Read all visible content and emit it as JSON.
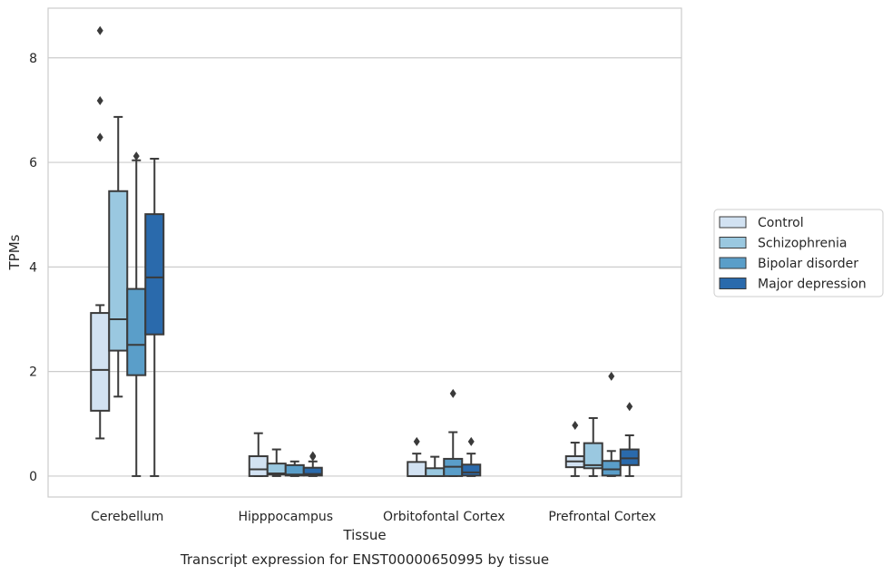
{
  "caption": "Transcript expression for ENST00000650995 by tissue",
  "chart_data": {
    "type": "box",
    "xlabel": "Tissue",
    "ylabel": "TPMs",
    "ylim": [
      -0.4,
      8.95
    ],
    "yticks": [
      0,
      2,
      4,
      6,
      8
    ],
    "grid": "horizontal",
    "legend_position": "right",
    "categories": [
      "Cerebellum",
      "Hipppocampus",
      "Orbitofontal Cortex",
      "Prefrontal Cortex"
    ],
    "series": [
      {
        "name": "Control",
        "color": "#d2e2f2",
        "boxes": [
          {
            "whisker_low": 0.72,
            "q1": 1.25,
            "median": 2.03,
            "q3": 3.12,
            "whisker_high": 3.27,
            "outliers": [
              8.52,
              7.18,
              6.48
            ]
          },
          {
            "whisker_low": 0.0,
            "q1": 0.0,
            "median": 0.13,
            "q3": 0.38,
            "whisker_high": 0.82,
            "outliers": []
          },
          {
            "whisker_low": 0.0,
            "q1": 0.0,
            "median": 0.0,
            "q3": 0.27,
            "whisker_high": 0.43,
            "outliers": [
              0.66
            ]
          },
          {
            "whisker_low": 0.0,
            "q1": 0.17,
            "median": 0.28,
            "q3": 0.38,
            "whisker_high": 0.64,
            "outliers": [
              0.97
            ]
          }
        ]
      },
      {
        "name": "Schizophrenia",
        "color": "#9ac8e0",
        "boxes": [
          {
            "whisker_low": 1.52,
            "q1": 2.4,
            "median": 3.0,
            "q3": 5.45,
            "whisker_high": 6.87,
            "outliers": []
          },
          {
            "whisker_low": 0.0,
            "q1": 0.03,
            "median": 0.05,
            "q3": 0.24,
            "whisker_high": 0.51,
            "outliers": []
          },
          {
            "whisker_low": 0.0,
            "q1": 0.0,
            "median": 0.0,
            "q3": 0.15,
            "whisker_high": 0.37,
            "outliers": []
          },
          {
            "whisker_low": 0.0,
            "q1": 0.15,
            "median": 0.21,
            "q3": 0.63,
            "whisker_high": 1.11,
            "outliers": []
          }
        ]
      },
      {
        "name": "Bipolar disorder",
        "color": "#5a9ec9",
        "boxes": [
          {
            "whisker_low": 0.0,
            "q1": 1.93,
            "median": 2.51,
            "q3": 3.58,
            "whisker_high": 6.04,
            "outliers": [
              6.12
            ]
          },
          {
            "whisker_low": 0.0,
            "q1": 0.01,
            "median": 0.03,
            "q3": 0.21,
            "whisker_high": 0.28,
            "outliers": []
          },
          {
            "whisker_low": 0.0,
            "q1": 0.0,
            "median": 0.18,
            "q3": 0.33,
            "whisker_high": 0.84,
            "outliers": [
              1.58
            ]
          },
          {
            "whisker_low": 0.0,
            "q1": 0.01,
            "median": 0.13,
            "q3": 0.29,
            "whisker_high": 0.48,
            "outliers": [
              1.91
            ]
          }
        ]
      },
      {
        "name": "Major depression",
        "color": "#2a6aac",
        "boxes": [
          {
            "whisker_low": 0.0,
            "q1": 2.71,
            "median": 3.8,
            "q3": 5.01,
            "whisker_high": 6.07,
            "outliers": []
          },
          {
            "whisker_low": 0.0,
            "q1": 0.01,
            "median": 0.04,
            "q3": 0.16,
            "whisker_high": 0.28,
            "outliers": [
              0.37,
              0.39
            ]
          },
          {
            "whisker_low": 0.0,
            "q1": 0.01,
            "median": 0.07,
            "q3": 0.22,
            "whisker_high": 0.43,
            "outliers": [
              0.66
            ]
          },
          {
            "whisker_low": 0.0,
            "q1": 0.21,
            "median": 0.34,
            "q3": 0.51,
            "whisker_high": 0.78,
            "outliers": [
              1.33
            ]
          }
        ]
      }
    ]
  }
}
